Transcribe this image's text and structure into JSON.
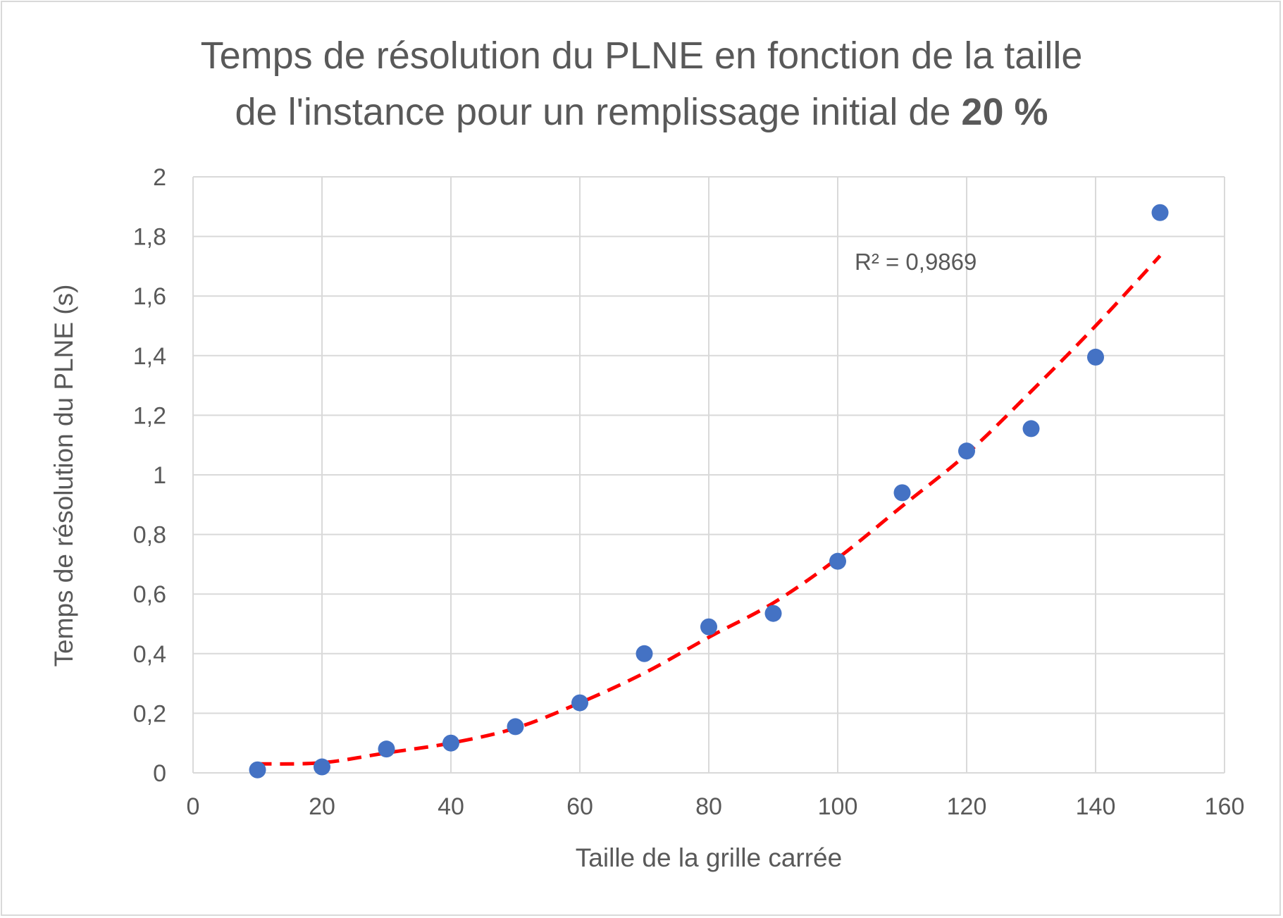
{
  "chart_data": {
    "type": "scatter",
    "title_line1": "Temps de résolution du PLNE en fonction de la taille",
    "title_line2_prefix": "de l'instance pour un remplissage initial de ",
    "title_line2_bold": "20 %",
    "xlabel": "Taille de la grille carrée",
    "ylabel": "Temps de résolution du PLNE (s)",
    "xlim": [
      0,
      160
    ],
    "ylim": [
      0,
      2
    ],
    "x_ticks": [
      "0",
      "20",
      "40",
      "60",
      "80",
      "100",
      "120",
      "140",
      "160"
    ],
    "y_ticks": [
      "0",
      "0,2",
      "0,4",
      "0,6",
      "0,8",
      "1",
      "1,2",
      "1,4",
      "1,6",
      "1,8",
      "2"
    ],
    "x_tick_values": [
      0,
      20,
      40,
      60,
      80,
      100,
      120,
      140,
      160
    ],
    "y_tick_values": [
      0,
      0.2,
      0.4,
      0.6,
      0.8,
      1.0,
      1.2,
      1.4,
      1.6,
      1.8,
      2.0
    ],
    "grid": true,
    "series": [
      {
        "x": [
          10,
          20,
          30,
          40,
          50,
          60,
          70,
          80,
          90,
          100,
          110,
          120,
          130,
          140,
          150
        ],
        "y": [
          0.01,
          0.02,
          0.08,
          0.1,
          0.155,
          0.235,
          0.4,
          0.49,
          0.535,
          0.71,
          0.94,
          1.08,
          1.155,
          1.395,
          1.88
        ],
        "color": "#4472c4"
      }
    ],
    "trendline": {
      "type": "polynomial",
      "x_range": [
        10,
        150
      ],
      "points": [
        [
          10,
          0.03
        ],
        [
          20,
          0.034
        ],
        [
          30,
          0.067
        ],
        [
          40,
          0.1
        ],
        [
          50,
          0.15
        ],
        [
          60,
          0.235
        ],
        [
          70,
          0.335
        ],
        [
          80,
          0.455
        ],
        [
          90,
          0.57
        ],
        [
          100,
          0.72
        ],
        [
          110,
          0.895
        ],
        [
          120,
          1.07
        ],
        [
          130,
          1.28
        ],
        [
          140,
          1.5
        ],
        [
          150,
          1.735
        ]
      ],
      "color": "#ff0000",
      "style": "dashed"
    },
    "annotation": "R² = 0,9869"
  }
}
